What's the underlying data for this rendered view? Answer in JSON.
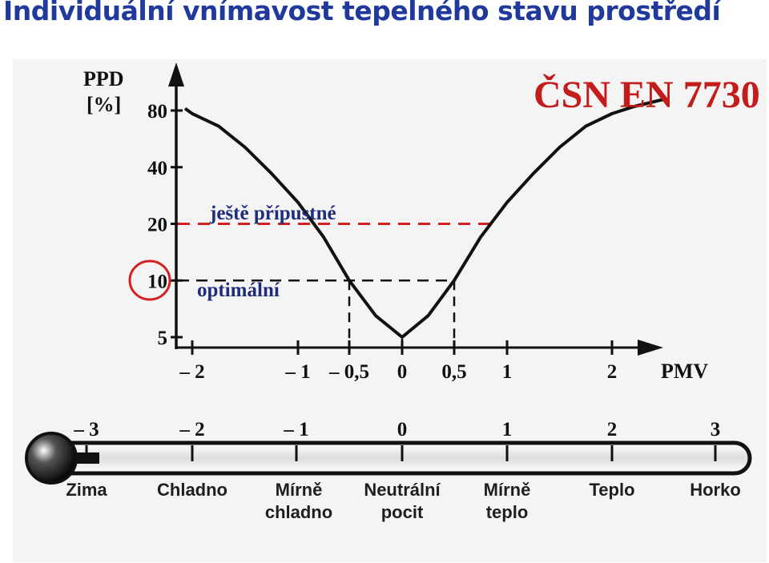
{
  "slide": {
    "title": "Individuální vnímavost tepelného stavu prostředí"
  },
  "chart_data": {
    "type": "line",
    "y_axis": {
      "name": "PPD",
      "unit": "[%]",
      "ticks": [
        5,
        10,
        20,
        40,
        80
      ]
    },
    "x_axis": {
      "name": "PMV",
      "ticks": [
        "– 2",
        "– 1",
        "– 0,5",
        "0",
        "0,5",
        "1",
        "2"
      ]
    },
    "standard_label": "ČSN EN 7730",
    "thresholds": [
      {
        "label": "ještě přípustné",
        "ppd": 20
      },
      {
        "label": "optimální",
        "ppd": 10,
        "pmv_range": [
          -0.5,
          0.5
        ]
      }
    ],
    "highlighted_tick": "10",
    "curve": {
      "pmv": [
        -2.1,
        -2,
        -1.75,
        -1.5,
        -1.25,
        -1,
        -0.75,
        -0.5,
        -0.25,
        0,
        0.25,
        0.5,
        0.75,
        1,
        1.25,
        1.5,
        1.75,
        2,
        2.25,
        2.6
      ],
      "ppd": [
        82,
        77,
        66,
        51,
        37,
        26,
        17,
        10,
        6.5,
        5,
        6.5,
        10,
        17,
        26,
        37,
        51,
        66,
        77,
        84,
        92
      ]
    },
    "sensation_scale": {
      "values": [
        "– 3",
        "– 2",
        "– 1",
        "0",
        "1",
        "2",
        "3"
      ],
      "labels": [
        "Zima",
        "Chladno",
        "Mírně\nchladno",
        "Neutrální\npocit",
        "Mírně\nteplo",
        "Teplo",
        "Horko"
      ]
    }
  }
}
